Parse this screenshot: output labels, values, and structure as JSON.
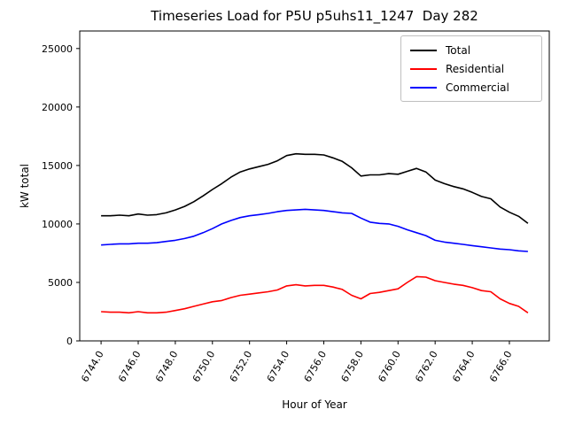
{
  "figure": {
    "background": "#ffffff"
  },
  "chart_data": {
    "type": "line",
    "title": "Timeseries Load for P5U p5uhs11_1247  Day 282",
    "xlabel": "Hour of Year",
    "ylabel": "kW total",
    "xlim": [
      6742.85,
      6768.15
    ],
    "ylim": [
      0,
      26500
    ],
    "grid": false,
    "legend_position": "upper right",
    "xticks": [
      6744.0,
      6746.0,
      6748.0,
      6750.0,
      6752.0,
      6754.0,
      6756.0,
      6758.0,
      6760.0,
      6762.0,
      6764.0,
      6766.0
    ],
    "xtick_labels": [
      "6744.0",
      "6746.0",
      "6748.0",
      "6750.0",
      "6752.0",
      "6754.0",
      "6756.0",
      "6758.0",
      "6760.0",
      "6762.0",
      "6764.0",
      "6766.0"
    ],
    "yticks": [
      0,
      5000,
      10000,
      15000,
      20000,
      25000
    ],
    "ytick_labels": [
      "0",
      "5000",
      "10000",
      "15000",
      "20000",
      "25000"
    ],
    "x": [
      6744.0,
      6744.5,
      6745.0,
      6745.5,
      6746.0,
      6746.5,
      6747.0,
      6747.5,
      6748.0,
      6748.5,
      6749.0,
      6749.5,
      6750.0,
      6750.5,
      6751.0,
      6751.5,
      6752.0,
      6752.5,
      6753.0,
      6753.5,
      6754.0,
      6754.5,
      6755.0,
      6755.5,
      6756.0,
      6756.5,
      6757.0,
      6757.5,
      6758.0,
      6758.5,
      6759.0,
      6759.5,
      6760.0,
      6760.5,
      6761.0,
      6761.5,
      6762.0,
      6762.5,
      6763.0,
      6763.5,
      6764.0,
      6764.5,
      6765.0,
      6765.5,
      6766.0,
      6766.5,
      6767.0
    ],
    "series": [
      {
        "name": "Total",
        "color": "#000000",
        "values": [
          10700,
          10700,
          10750,
          10700,
          10850,
          10750,
          10800,
          10950,
          11200,
          11500,
          11900,
          12400,
          12950,
          13450,
          14000,
          14450,
          14700,
          14900,
          15100,
          15400,
          15850,
          16000,
          15950,
          15950,
          15900,
          15650,
          15350,
          14800,
          14100,
          14200,
          14200,
          14300,
          14250,
          14500,
          14750,
          14450,
          13750,
          13450,
          13200,
          13000,
          12700,
          12350,
          12150,
          11450,
          11000,
          10650,
          10050
        ]
      },
      {
        "name": "Residential",
        "color": "#ff0000",
        "values": [
          2500,
          2450,
          2450,
          2400,
          2500,
          2400,
          2400,
          2450,
          2600,
          2750,
          2950,
          3150,
          3350,
          3450,
          3700,
          3900,
          4000,
          4100,
          4200,
          4350,
          4700,
          4800,
          4700,
          4750,
          4750,
          4600,
          4400,
          3900,
          3600,
          4050,
          4150,
          4300,
          4450,
          5000,
          5500,
          5450,
          5150,
          5000,
          4850,
          4750,
          4550,
          4300,
          4200,
          3600,
          3200,
          2950,
          2400
        ]
      },
      {
        "name": "Commercial",
        "color": "#0000ff",
        "values": [
          8200,
          8250,
          8300,
          8300,
          8350,
          8350,
          8400,
          8500,
          8600,
          8750,
          8950,
          9250,
          9600,
          10000,
          10300,
          10550,
          10700,
          10800,
          10900,
          11050,
          11150,
          11200,
          11250,
          11200,
          11150,
          11050,
          10950,
          10900,
          10500,
          10150,
          10050,
          10000,
          9800,
          9500,
          9250,
          9000,
          8600,
          8450,
          8350,
          8250,
          8150,
          8050,
          7950,
          7850,
          7800,
          7700,
          7650
        ]
      }
    ]
  }
}
